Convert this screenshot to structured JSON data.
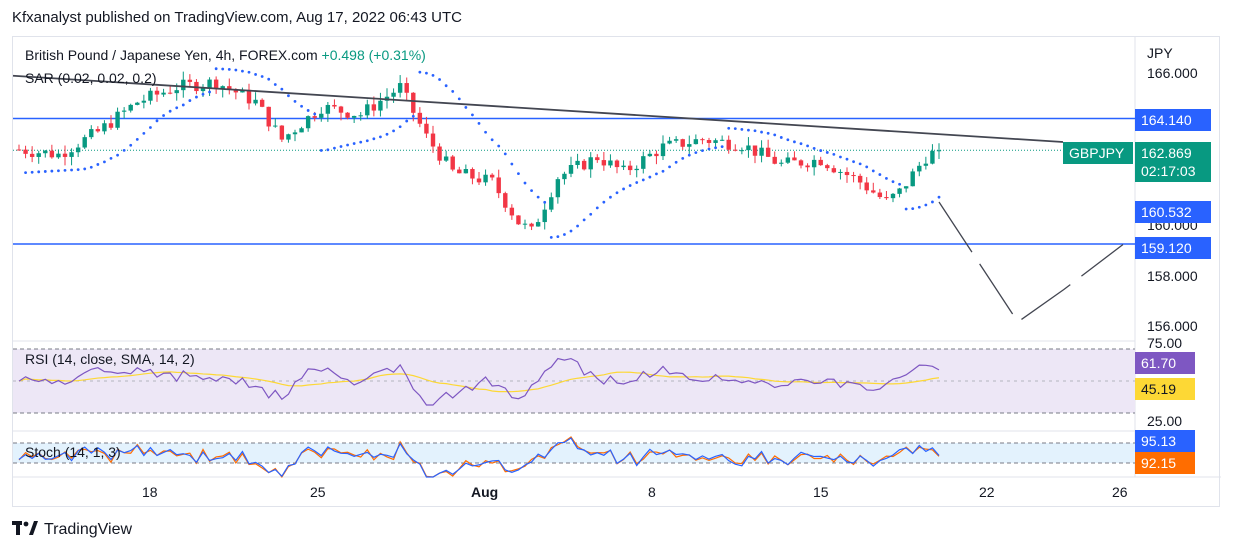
{
  "header": {
    "publisher_text": "Kfxanalyst published on TradingView.com, Aug 17, 2022 06:43 UTC"
  },
  "legend": {
    "symbol": "British Pound / Japanese Yen, 4h, FOREX.com",
    "change": "+0.498 (+0.31%)",
    "sar": "SAR (0.02, 0.02, 0.2)",
    "rsi": "RSI (14, close, SMA, 14, 2)",
    "stoch": "Stoch (14, 1, 3)"
  },
  "price_axis": {
    "currency": "JPY",
    "ticks": [
      "166.000",
      "160.000",
      "158.000",
      "156.000"
    ],
    "rsi_ticks": [
      "75.00",
      "25.00"
    ]
  },
  "time_axis": {
    "ticks": [
      "18",
      "25",
      "Aug",
      "8",
      "15",
      "22",
      "26"
    ]
  },
  "badges": {
    "level_upper": "164.140",
    "symbol_tag": "GBPJPY",
    "last_price": "162.869",
    "countdown": "02:17:03",
    "sar_value": "160.532",
    "level_lower": "159.120",
    "rsi_value": "61.70",
    "rsi_sma": "45.19",
    "stoch_k": "95.13",
    "stoch_d": "92.15"
  },
  "colors": {
    "up": "#089981",
    "down": "#f23645",
    "level_line": "#2962ff",
    "trendline": "#434651",
    "sar_dots": "#2962ff",
    "rsi_line": "#7e57c2",
    "rsi_sma": "#fdd835",
    "stoch_k": "#2962ff",
    "stoch_d": "#ff6d00",
    "symbol_tag": "#089981",
    "rsi_band": "#ede7f6",
    "stoch_band": "#e3f2fd"
  },
  "footer": {
    "brand": "TradingView"
  },
  "chart_data": {
    "type": "candlestick",
    "symbol": "GBPJPY",
    "timeframe": "4h",
    "y_range": [
      155.4,
      166.6
    ],
    "x_ticks": [
      "18",
      "25",
      "Aug",
      "8",
      "15",
      "22",
      "26"
    ],
    "last_close": 162.869,
    "horizontal_levels": [
      164.14,
      159.12
    ],
    "close_path": [
      {
        "i": 0,
        "c": 162.9
      },
      {
        "i": 6,
        "c": 162.7
      },
      {
        "i": 12,
        "c": 163.6
      },
      {
        "i": 18,
        "c": 164.8
      },
      {
        "i": 24,
        "c": 165.4
      },
      {
        "i": 30,
        "c": 165.6
      },
      {
        "i": 36,
        "c": 164.8
      },
      {
        "i": 40,
        "c": 163.3
      },
      {
        "i": 46,
        "c": 164.6
      },
      {
        "i": 52,
        "c": 164.3
      },
      {
        "i": 58,
        "c": 165.4
      },
      {
        "i": 62,
        "c": 163.4
      },
      {
        "i": 66,
        "c": 162.0
      },
      {
        "i": 72,
        "c": 161.6
      },
      {
        "i": 76,
        "c": 160.0
      },
      {
        "i": 78,
        "c": 159.6
      },
      {
        "i": 82,
        "c": 161.8
      },
      {
        "i": 88,
        "c": 162.6
      },
      {
        "i": 92,
        "c": 162.0
      },
      {
        "i": 98,
        "c": 163.0
      },
      {
        "i": 104,
        "c": 163.3
      },
      {
        "i": 110,
        "c": 163.1
      },
      {
        "i": 116,
        "c": 162.3
      },
      {
        "i": 122,
        "c": 162.5
      },
      {
        "i": 128,
        "c": 161.6
      },
      {
        "i": 132,
        "c": 160.8
      },
      {
        "i": 134,
        "c": 161.2
      },
      {
        "i": 138,
        "c": 162.6
      },
      {
        "i": 140,
        "c": 162.87
      }
    ],
    "projection": [
      {
        "i": 140,
        "c": 160.8
      },
      {
        "i": 148,
        "c": 157.6
      },
      {
        "i": 152,
        "c": 156.0
      },
      {
        "i": 159,
        "c": 157.3
      },
      {
        "i": 168,
        "c": 159.1
      }
    ],
    "rsi_range": [
      0,
      100
    ],
    "stoch_range": [
      0,
      100
    ]
  }
}
